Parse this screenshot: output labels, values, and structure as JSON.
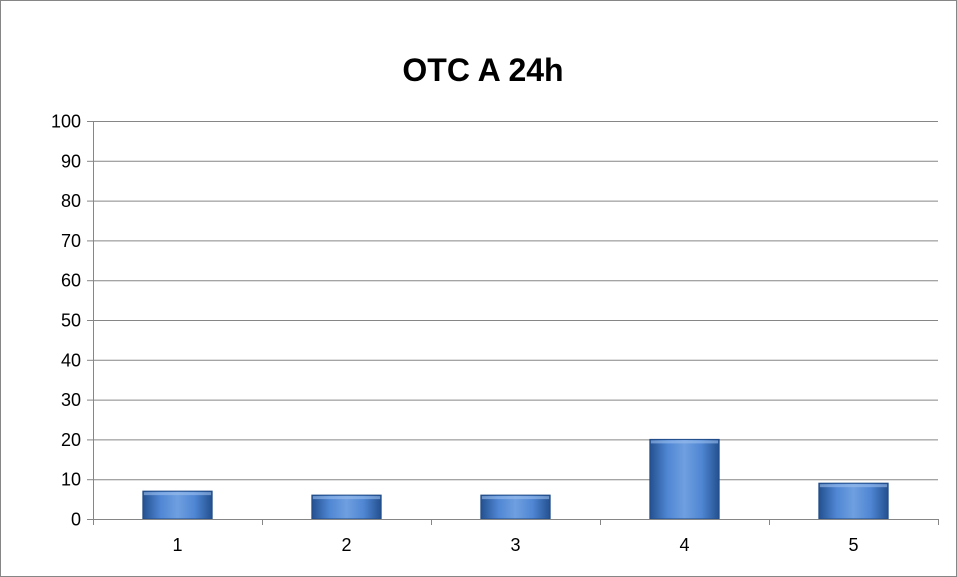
{
  "chart_data": {
    "type": "bar",
    "title": "OTC A 24h",
    "xlabel": "",
    "ylabel": "",
    "categories": [
      "1",
      "2",
      "3",
      "4",
      "5"
    ],
    "values": [
      7,
      6,
      6,
      20,
      9
    ],
    "ylim": [
      0,
      100
    ],
    "yticks": [
      0,
      10,
      20,
      30,
      40,
      50,
      60,
      70,
      80,
      90,
      100
    ],
    "grid": true,
    "legend": "none",
    "colors": {
      "bar_light": "#6f9fe0",
      "bar_mid": "#3c73c2",
      "bar_dark": "#23508f",
      "bar_edge": "#1f4a86",
      "grid": "#868686",
      "frame": "#868686"
    }
  }
}
